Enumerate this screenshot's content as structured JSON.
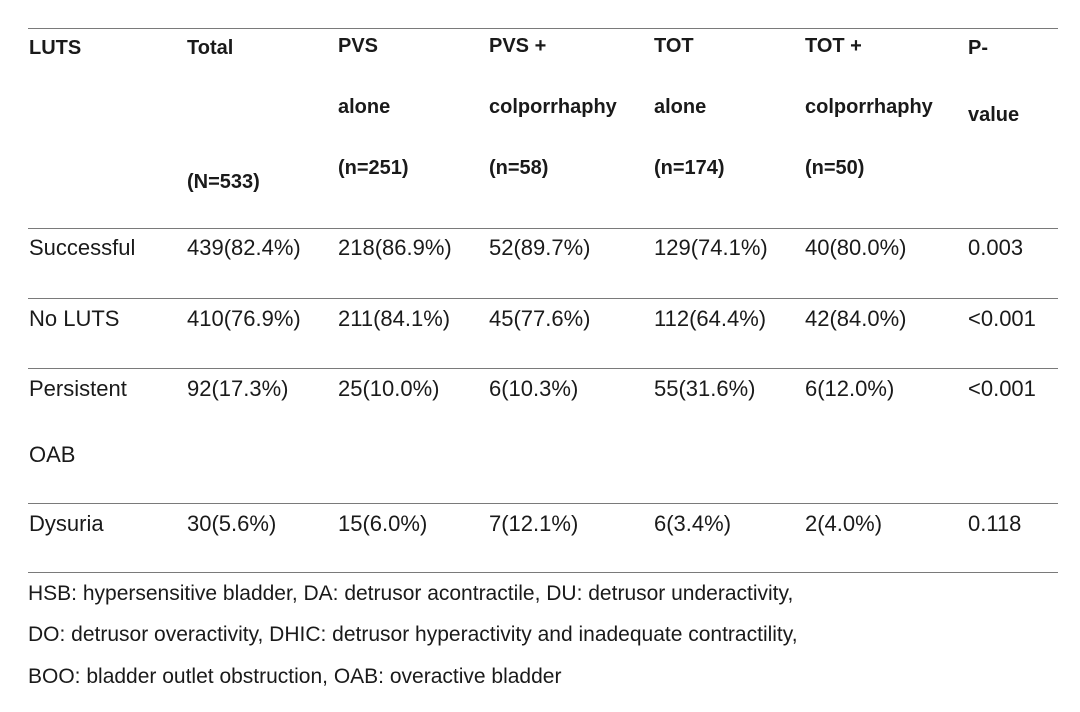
{
  "table": {
    "header": {
      "col1": [
        "LUTS"
      ],
      "col2": [
        "Total",
        "(N=533)"
      ],
      "col3": [
        "PVS",
        "alone",
        "(n=251)"
      ],
      "col4": [
        "PVS +",
        "colporrhaphy",
        "(n=58)"
      ],
      "col5": [
        "TOT",
        "alone",
        "(n=174)"
      ],
      "col6": [
        "TOT +",
        "colporrhaphy",
        "(n=50)"
      ],
      "col7": [
        "P-",
        "value"
      ]
    },
    "rows": [
      {
        "label": [
          "Successful"
        ],
        "values": [
          "439(82.4%)",
          "218(86.9%)",
          "52(89.7%)",
          "129(74.1%)",
          "40(80.0%)",
          "0.003"
        ]
      },
      {
        "label": [
          "No LUTS"
        ],
        "values": [
          "410(76.9%)",
          "211(84.1%)",
          "45(77.6%)",
          "112(64.4%)",
          "42(84.0%)",
          "<0.001"
        ]
      },
      {
        "label": [
          "Persistent",
          "OAB"
        ],
        "values": [
          "92(17.3%)",
          "25(10.0%)",
          "6(10.3%)",
          "55(31.6%)",
          "6(12.0%)",
          "<0.001"
        ]
      },
      {
        "label": [
          "Dysuria"
        ],
        "values": [
          "30(5.6%)",
          "15(6.0%)",
          "7(12.1%)",
          "6(3.4%)",
          "2(4.0%)",
          "0.118"
        ]
      }
    ]
  },
  "footnote": [
    "HSB: hypersensitive bladder, DA: detrusor acontractile, DU: detrusor underactivity,",
    "DO: detrusor overactivity, DHIC: detrusor hyperactivity and inadequate contractility,",
    "BOO: bladder outlet obstruction, OAB: overactive bladder"
  ]
}
